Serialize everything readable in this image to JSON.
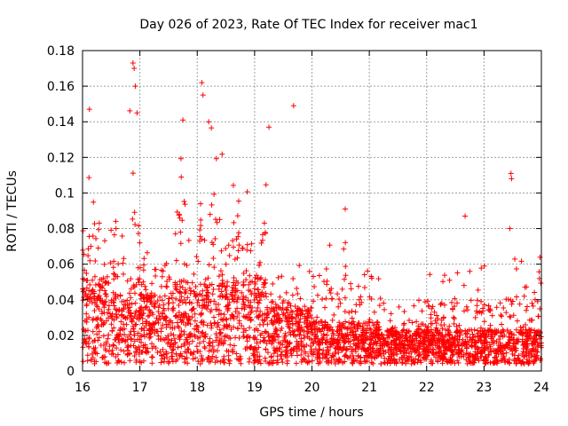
{
  "chart_data": {
    "type": "scatter",
    "title": "Day 026 of 2023, Rate Of TEC Index for receiver mac1",
    "xlabel": "GPS time / hours",
    "ylabel": "ROTI / TECUs",
    "xlim": [
      16,
      24
    ],
    "ylim": [
      0,
      0.18
    ],
    "x_ticks": [
      16,
      17,
      18,
      19,
      20,
      21,
      22,
      23,
      24
    ],
    "x_tick_labels": [
      "16",
      "17",
      "18",
      "19",
      "20",
      "21",
      "22",
      "23",
      "24"
    ],
    "y_ticks": [
      0,
      0.02,
      0.04,
      0.06,
      0.08,
      0.1,
      0.12,
      0.14,
      0.16,
      0.18
    ],
    "y_tick_labels": [
      "0",
      "0.02",
      "0.04",
      "0.06",
      "0.08",
      "0.1",
      "0.12",
      "0.14",
      "0.16",
      "0.18"
    ],
    "grid": true,
    "marker": "+",
    "color": "#ff0000",
    "series": [
      {
        "name": "ROTI",
        "profile": [
          {
            "x0": 16.0,
            "x1": 16.5,
            "base": 0.03,
            "high": 0.125
          },
          {
            "x0": 16.5,
            "x1": 16.8,
            "base": 0.025,
            "high": 0.09
          },
          {
            "x0": 16.8,
            "x1": 17.0,
            "base": 0.03,
            "high": 0.15
          },
          {
            "x0": 17.0,
            "x1": 17.6,
            "base": 0.025,
            "high": 0.085
          },
          {
            "x0": 17.6,
            "x1": 18.3,
            "base": 0.03,
            "high": 0.14
          },
          {
            "x0": 18.3,
            "x1": 18.7,
            "base": 0.03,
            "high": 0.125
          },
          {
            "x0": 18.7,
            "x1": 19.2,
            "base": 0.03,
            "high": 0.11
          },
          {
            "x0": 19.2,
            "x1": 20.0,
            "base": 0.02,
            "high": 0.06
          },
          {
            "x0": 20.0,
            "x1": 21.2,
            "base": 0.015,
            "high": 0.08
          },
          {
            "x0": 21.2,
            "x1": 22.0,
            "base": 0.012,
            "high": 0.04
          },
          {
            "x0": 22.0,
            "x1": 23.4,
            "base": 0.012,
            "high": 0.06
          },
          {
            "x0": 23.4,
            "x1": 24.0,
            "base": 0.012,
            "high": 0.075
          }
        ],
        "notable_points": [
          {
            "x": 16.88,
            "y": 0.173
          },
          {
            "x": 16.9,
            "y": 0.17
          },
          {
            "x": 16.92,
            "y": 0.16
          },
          {
            "x": 16.95,
            "y": 0.145
          },
          {
            "x": 16.12,
            "y": 0.147
          },
          {
            "x": 18.08,
            "y": 0.162
          },
          {
            "x": 18.1,
            "y": 0.155
          },
          {
            "x": 17.75,
            "y": 0.141
          },
          {
            "x": 18.2,
            "y": 0.14
          },
          {
            "x": 19.25,
            "y": 0.137
          },
          {
            "x": 19.68,
            "y": 0.149
          },
          {
            "x": 23.47,
            "y": 0.111
          },
          {
            "x": 23.48,
            "y": 0.108
          },
          {
            "x": 22.67,
            "y": 0.087
          },
          {
            "x": 20.58,
            "y": 0.091
          },
          {
            "x": 23.45,
            "y": 0.08
          }
        ]
      }
    ]
  }
}
